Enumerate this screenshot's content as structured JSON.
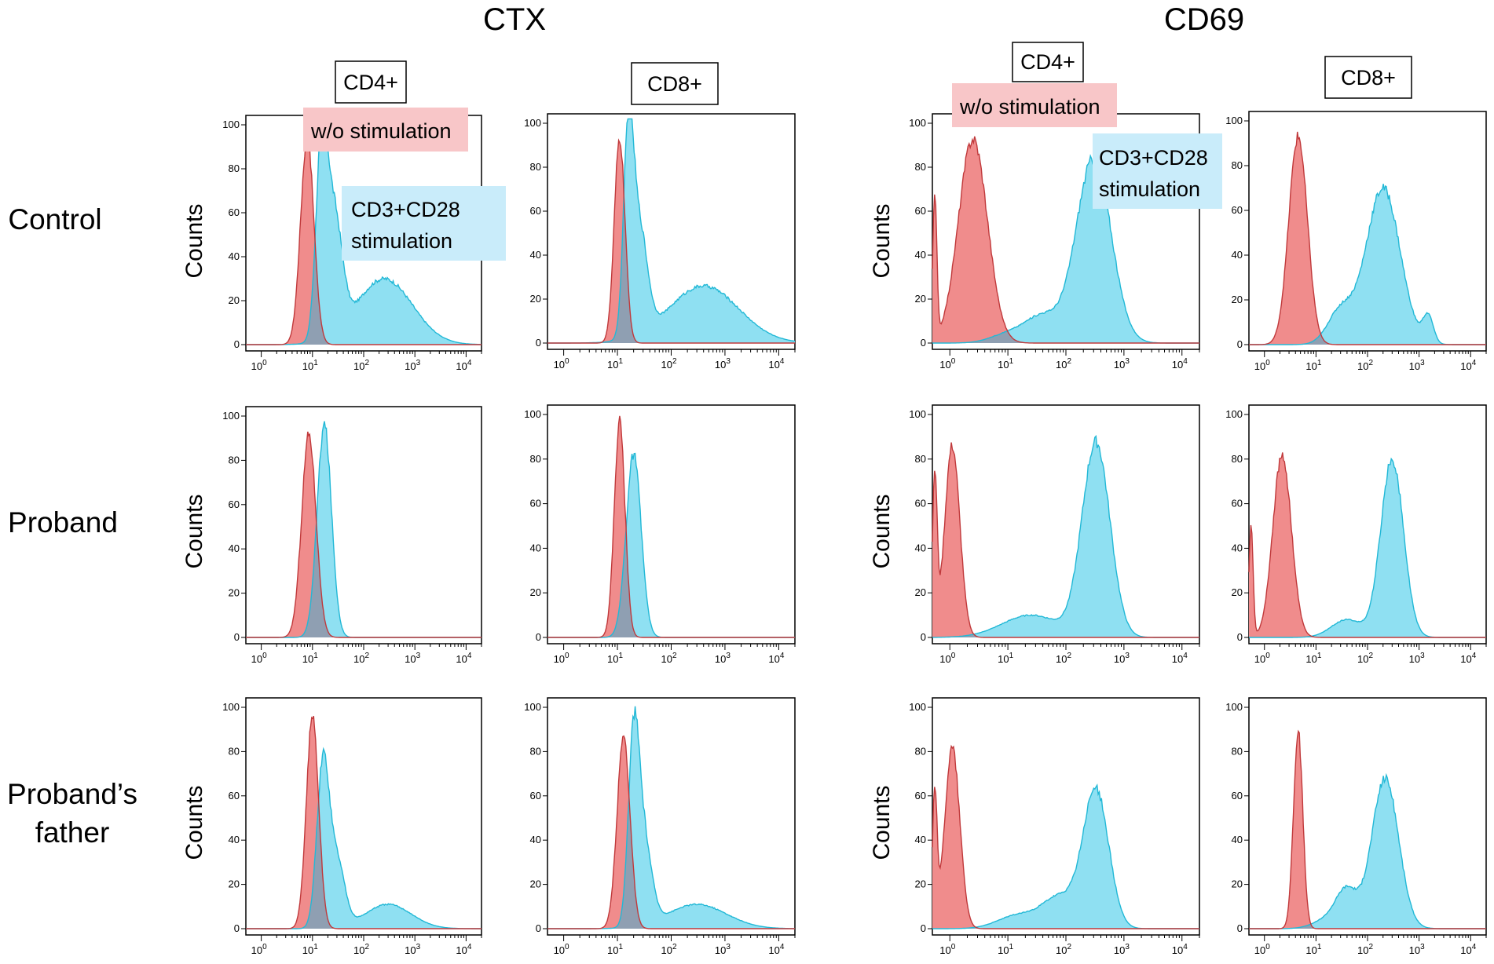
{
  "colors": {
    "unstim_fill": "#f08c8c",
    "unstim_line": "#c0393b",
    "stim_fill": "#8fe0f2",
    "stim_line": "#22b8d6",
    "overlap_fill": "#8f9fb2",
    "legend_unstim_bg": "#f8c6c8",
    "legend_stim_bg": "#c9ecfa"
  },
  "figure": {
    "group_titles": [
      "CTX",
      "CD69"
    ],
    "row_labels": [
      [
        "Control"
      ],
      [
        "Proband"
      ],
      [
        "Proband’s",
        "father"
      ]
    ],
    "ylabel": "Counts",
    "column_labels": [
      "CD4+",
      "CD8+",
      "CD4+",
      "CD8+"
    ],
    "legend": {
      "unstim": "w/o stimulation",
      "stim_line1": "CD3+CD28",
      "stim_line2": "stimulation"
    }
  },
  "chart_data": [
    {
      "type": "area",
      "marker": "CTX",
      "cells": "CD4+",
      "row": "Control",
      "ylabel": "Counts",
      "xlabel": "",
      "xscale": "log",
      "xlim": [
        0.5,
        20000
      ],
      "ylim": [
        0,
        100
      ],
      "yticks": [
        0,
        20,
        40,
        60,
        80,
        100
      ],
      "xticks": [
        "10^0",
        "10^1",
        "10^2",
        "10^3",
        "10^4"
      ],
      "series": [
        {
          "name": "w/o stimulation",
          "peaks": [
            [
              7.9,
              94,
              0.13
            ]
          ]
        },
        {
          "name": "CD3+CD28 stimulation",
          "peaks": [
            [
              15,
              83,
              0.11
            ],
            [
              26,
              55,
              0.16
            ],
            [
              250,
              30,
              0.55
            ]
          ]
        }
      ]
    },
    {
      "type": "area",
      "marker": "CTX",
      "cells": "CD8+",
      "row": "Control",
      "ylabel": "Counts",
      "xlabel": "",
      "xscale": "log",
      "xlim": [
        0.5,
        20000
      ],
      "ylim": [
        0,
        100
      ],
      "yticks": [
        0,
        20,
        40,
        60,
        80,
        100
      ],
      "xticks": [
        "10^0",
        "10^1",
        "10^2",
        "10^3",
        "10^4"
      ],
      "series": [
        {
          "name": "w/o stimulation",
          "peaks": [
            [
              11,
              93,
              0.1
            ]
          ]
        },
        {
          "name": "CD3+CD28 stimulation",
          "peaks": [
            [
              16,
              85,
              0.09
            ],
            [
              25,
              50,
              0.15
            ],
            [
              400,
              26,
              0.65
            ]
          ]
        }
      ]
    },
    {
      "type": "area",
      "marker": "CD69",
      "cells": "CD4+",
      "row": "Control",
      "ylabel": "Counts",
      "xlabel": "",
      "xscale": "log",
      "xlim": [
        0.5,
        20000
      ],
      "ylim": [
        0,
        100
      ],
      "yticks": [
        0,
        20,
        40,
        60,
        80,
        100
      ],
      "xticks": [
        "10^0",
        "10^1",
        "10^2",
        "10^3",
        "10^4"
      ],
      "series": [
        {
          "name": "w/o stimulation",
          "peaks": [
            [
              0.55,
              65,
              0.035
            ],
            [
              2.5,
              93,
              0.25
            ]
          ]
        },
        {
          "name": "CD3+CD28 stimulation",
          "peaks": [
            [
              300,
              84,
              0.3
            ],
            [
              40,
              12,
              0.3
            ],
            [
              10,
              4,
              0.3
            ]
          ]
        }
      ]
    },
    {
      "type": "area",
      "marker": "CD69",
      "cells": "CD8+",
      "row": "Control",
      "ylabel": "Counts",
      "xlabel": "",
      "xscale": "log",
      "xlim": [
        0.5,
        20000
      ],
      "ylim": [
        0,
        100
      ],
      "yticks": [
        0,
        20,
        40,
        60,
        80,
        100
      ],
      "xticks": [
        "10^0",
        "10^1",
        "10^2",
        "10^3",
        "10^4"
      ],
      "series": [
        {
          "name": "w/o stimulation",
          "peaks": [
            [
              4.5,
              93,
              0.18
            ]
          ]
        },
        {
          "name": "CD3+CD28 stimulation",
          "peaks": [
            [
              200,
              70,
              0.33
            ],
            [
              30,
              15,
              0.25
            ],
            [
              1500,
              12,
              0.1
            ]
          ]
        }
      ]
    },
    {
      "type": "area",
      "marker": "CTX",
      "cells": "CD4+",
      "row": "Proband",
      "ylabel": "Counts",
      "xlabel": "",
      "xscale": "log",
      "xlim": [
        0.5,
        20000
      ],
      "ylim": [
        0,
        100
      ],
      "yticks": [
        0,
        20,
        40,
        60,
        80,
        100
      ],
      "xticks": [
        "10^0",
        "10^1",
        "10^2",
        "10^3",
        "10^4"
      ],
      "series": [
        {
          "name": "w/o stimulation",
          "peaks": [
            [
              8.5,
              92,
              0.14
            ]
          ]
        },
        {
          "name": "CD3+CD28 stimulation",
          "peaks": [
            [
              17,
              96,
              0.14
            ]
          ]
        }
      ]
    },
    {
      "type": "area",
      "marker": "CTX",
      "cells": "CD8+",
      "row": "Proband",
      "ylabel": "Counts",
      "xlabel": "",
      "xscale": "log",
      "xlim": [
        0.5,
        20000
      ],
      "ylim": [
        0,
        100
      ],
      "yticks": [
        0,
        20,
        40,
        60,
        80,
        100
      ],
      "xticks": [
        "10^0",
        "10^1",
        "10^2",
        "10^3",
        "10^4"
      ],
      "series": [
        {
          "name": "w/o stimulation",
          "peaks": [
            [
              11,
              97,
              0.1
            ]
          ]
        },
        {
          "name": "CD3+CD28 stimulation",
          "peaks": [
            [
              20,
              82,
              0.14
            ]
          ]
        }
      ]
    },
    {
      "type": "area",
      "marker": "CD69",
      "cells": "CD4+",
      "row": "Proband",
      "ylabel": "Counts",
      "xlabel": "",
      "xscale": "log",
      "xlim": [
        0.5,
        20000
      ],
      "ylim": [
        0,
        100
      ],
      "yticks": [
        0,
        20,
        40,
        60,
        80,
        100
      ],
      "xticks": [
        "10^0",
        "10^1",
        "10^2",
        "10^3",
        "10^4"
      ],
      "series": [
        {
          "name": "w/o stimulation",
          "peaks": [
            [
              0.55,
              70,
              0.04
            ],
            [
              1.1,
              86,
              0.13
            ]
          ]
        },
        {
          "name": "CD3+CD28 stimulation",
          "peaks": [
            [
              330,
              87,
              0.24
            ],
            [
              25,
              10,
              0.5
            ]
          ]
        }
      ]
    },
    {
      "type": "area",
      "marker": "CD69",
      "cells": "CD8+",
      "row": "Proband",
      "ylabel": "Counts",
      "xlabel": "",
      "xscale": "log",
      "xlim": [
        0.5,
        20000
      ],
      "ylim": [
        0,
        100
      ],
      "yticks": [
        0,
        20,
        40,
        60,
        80,
        100
      ],
      "xticks": [
        "10^0",
        "10^1",
        "10^2",
        "10^3",
        "10^4"
      ],
      "series": [
        {
          "name": "w/o stimulation",
          "peaks": [
            [
              0.55,
              50,
              0.04
            ],
            [
              2.2,
              82,
              0.18
            ]
          ]
        },
        {
          "name": "CD3+CD28 stimulation",
          "peaks": [
            [
              300,
              80,
              0.22
            ],
            [
              40,
              8,
              0.3
            ]
          ]
        }
      ]
    },
    {
      "type": "area",
      "marker": "CTX",
      "cells": "CD4+",
      "row": "Proband’s father",
      "ylabel": "Counts",
      "xlabel": "",
      "xscale": "log",
      "xlim": [
        0.5,
        20000
      ],
      "ylim": [
        0,
        100
      ],
      "yticks": [
        0,
        20,
        40,
        60,
        80,
        100
      ],
      "xticks": [
        "10^0",
        "10^1",
        "10^2",
        "10^3",
        "10^4"
      ],
      "series": [
        {
          "name": "w/o stimulation",
          "peaks": [
            [
              10,
              96,
              0.12
            ]
          ]
        },
        {
          "name": "CD3+CD28 stimulation",
          "peaks": [
            [
              16,
              73,
              0.12
            ],
            [
              30,
              30,
              0.15
            ],
            [
              300,
              11,
              0.45
            ]
          ]
        }
      ]
    },
    {
      "type": "area",
      "marker": "CTX",
      "cells": "CD8+",
      "row": "Proband’s father",
      "ylabel": "Counts",
      "xlabel": "",
      "xscale": "log",
      "xlim": [
        0.5,
        20000
      ],
      "ylim": [
        0,
        100
      ],
      "yticks": [
        0,
        20,
        40,
        60,
        80,
        100
      ],
      "xticks": [
        "10^0",
        "10^1",
        "10^2",
        "10^3",
        "10^4"
      ],
      "series": [
        {
          "name": "w/o stimulation",
          "peaks": [
            [
              13,
              87,
              0.12
            ]
          ]
        },
        {
          "name": "CD3+CD28 stimulation",
          "peaks": [
            [
              20,
              75,
              0.1
            ],
            [
              30,
              40,
              0.15
            ],
            [
              300,
              11,
              0.55
            ]
          ]
        }
      ]
    },
    {
      "type": "area",
      "marker": "CD69",
      "cells": "CD4+",
      "row": "Proband’s father",
      "ylabel": "Counts",
      "xlabel": "",
      "xscale": "log",
      "xlim": [
        0.5,
        20000
      ],
      "ylim": [
        0,
        100
      ],
      "yticks": [
        0,
        20,
        40,
        60,
        80,
        100
      ],
      "xticks": [
        "10^0",
        "10^1",
        "10^2",
        "10^3",
        "10^4"
      ],
      "series": [
        {
          "name": "w/o stimulation",
          "peaks": [
            [
              0.55,
              60,
              0.04
            ],
            [
              1.1,
              82,
              0.13
            ]
          ]
        },
        {
          "name": "CD3+CD28 stimulation",
          "peaks": [
            [
              330,
              62,
              0.22
            ],
            [
              80,
              14,
              0.3
            ],
            [
              15,
              6,
              0.35
            ]
          ]
        }
      ]
    },
    {
      "type": "area",
      "marker": "CD69",
      "cells": "CD8+",
      "row": "Proband’s father",
      "ylabel": "Counts",
      "xlabel": "",
      "xscale": "log",
      "xlim": [
        0.5,
        20000
      ],
      "ylim": [
        0,
        100
      ],
      "yticks": [
        0,
        20,
        40,
        60,
        80,
        100
      ],
      "xticks": [
        "10^0",
        "10^1",
        "10^2",
        "10^3",
        "10^4"
      ],
      "series": [
        {
          "name": "w/o stimulation",
          "peaks": [
            [
              4.5,
              89,
              0.09
            ]
          ]
        },
        {
          "name": "CD3+CD28 stimulation",
          "peaks": [
            [
              220,
              68,
              0.26
            ],
            [
              40,
              15,
              0.2
            ],
            [
              20,
              5,
              0.3
            ]
          ]
        }
      ]
    }
  ]
}
